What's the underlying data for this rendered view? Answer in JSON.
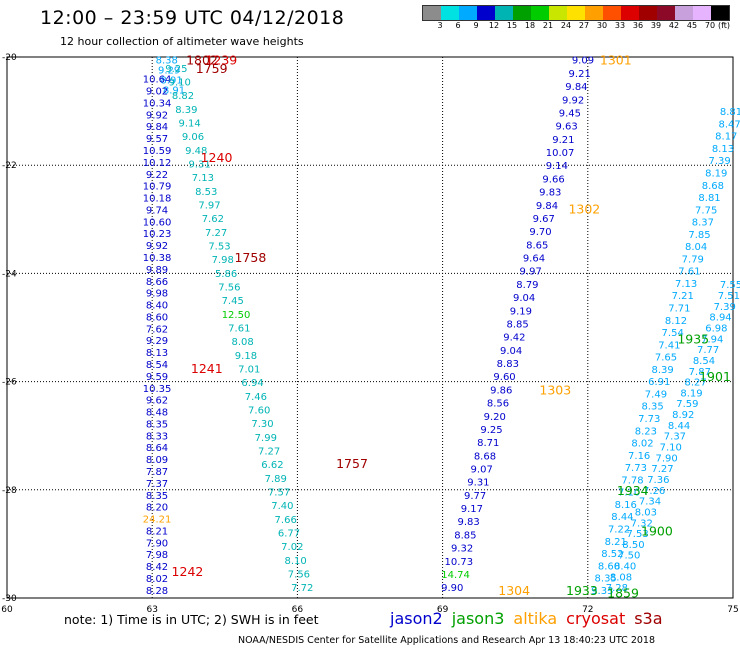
{
  "header": {
    "title": "12:00 – 23:59 UTC 04/12/2018",
    "subtitle": "12 hour collection of altimeter wave heights"
  },
  "colorbar": {
    "unit": "(ft)",
    "labels": [
      "3",
      "6",
      "9",
      "12",
      "15",
      "18",
      "21",
      "24",
      "27",
      "30",
      "33",
      "36",
      "39",
      "42",
      "45",
      "70"
    ],
    "colors": [
      "#8c8c8c",
      "#00e1e1",
      "#00aaff",
      "#0000cd",
      "#00b4b4",
      "#00a000",
      "#00cc00",
      "#c8e600",
      "#ffe100",
      "#ffa000",
      "#ff5000",
      "#dc0000",
      "#a00000",
      "#8c0a28",
      "#c8a0dc",
      "#e6b4ff",
      "#000000"
    ]
  },
  "map": {
    "lon_range": [
      60,
      75
    ],
    "lat_range": [
      -30,
      -20
    ],
    "x_ticks": [
      "60",
      "63",
      "66",
      "69",
      "72",
      "75"
    ],
    "y_ticks": [
      "-20",
      "-22",
      "-24",
      "-26",
      "-28",
      "-30"
    ]
  },
  "tracks": [
    {
      "id": "t1",
      "color": "#00aaff",
      "start": [
        63.3,
        -20.05
      ],
      "end": [
        63.45,
        -20.6
      ],
      "vals": [
        "8.38",
        "9.29",
        "8.91",
        "8.91"
      ]
    },
    {
      "id": "t2",
      "color": "#0000cd",
      "start": [
        63.1,
        -20.4
      ],
      "end": [
        63.1,
        -29.85
      ],
      "vals": [
        "10.64",
        "9.02",
        "10.34",
        "9.92",
        "9.84",
        "9.57",
        "10.59",
        "10.12",
        "9.22",
        "10.79",
        "10.18",
        "9.74",
        "10.60",
        "10.23",
        "9.92",
        "10.38",
        "9.89",
        "8.66",
        "9.98",
        "8.40",
        "8.60",
        "7.62",
        "9.29",
        "8.13",
        "8.54",
        "9.59",
        "10.35",
        "9.62",
        "8.48",
        "8.35",
        "8.33",
        "8.64",
        "8.09",
        "7.87",
        "7.37",
        "8.35",
        "8.20",
        "24.21",
        "8.21",
        "7.90",
        "7.98",
        "8.42",
        "8.02",
        "8.28"
      ]
    },
    {
      "id": "t3",
      "color": "#00b4b4",
      "start": [
        63.5,
        -20.2
      ],
      "end": [
        66.1,
        -29.8
      ],
      "vals": [
        "9.25",
        "9.10",
        "8.82",
        "8.39",
        "9.14",
        "9.06",
        "9.48",
        "9.31",
        "7.13",
        "8.53",
        "7.97",
        "7.62",
        "7.27",
        "7.53",
        "7.98",
        "5.86",
        "7.56",
        "7.45",
        "12.50",
        "7.61",
        "8.08",
        "9.18",
        "7.01",
        "6.94",
        "7.46",
        "7.60",
        "7.30",
        "7.99",
        "7.27",
        "6.62",
        "7.89",
        "7.57",
        "7.40",
        "7.66",
        "6.77",
        "7.02",
        "8.10",
        "7.56",
        "7.72"
      ]
    },
    {
      "id": "t4",
      "color": "#0000cd",
      "start": [
        71.9,
        -20.05
      ],
      "end": [
        69.2,
        -29.8
      ],
      "vals": [
        "9.09",
        "9.21",
        "9.84",
        "9.92",
        "9.45",
        "9.63",
        "9.21",
        "10.07",
        "9.14",
        "9.66",
        "9.83",
        "9.84",
        "9.67",
        "9.70",
        "8.65",
        "9.64",
        "9.97",
        "8.79",
        "9.04",
        "9.19",
        "8.85",
        "9.42",
        "9.04",
        "8.83",
        "9.60",
        "9.86",
        "8.56",
        "9.20",
        "9.25",
        "8.71",
        "8.68",
        "9.07",
        "9.31",
        "9.77",
        "9.17",
        "9.83",
        "8.85",
        "9.32",
        "10.73",
        "14.74",
        "9.90"
      ]
    },
    {
      "id": "t5",
      "color": "#00aaff",
      "start": [
        75.0,
        -21.0
      ],
      "end": [
        72.3,
        -29.85
      ],
      "vals": [
        "8.81",
        "8.47",
        "8.17",
        "8.13",
        "7.39",
        "8.19",
        "8.68",
        "8.81",
        "7.75",
        "8.37",
        "7.85",
        "8.04",
        "7.79",
        "7.61",
        "7.13",
        "7.21",
        "7.71",
        "8.12",
        "7.54",
        "7.41",
        "7.65",
        "8.39",
        "6.91",
        "7.49",
        "8.35",
        "7.73",
        "8.23",
        "8.02",
        "7.16",
        "7.73",
        "7.78",
        "7.10",
        "8.16",
        "8.44",
        "7.22",
        "8.21",
        "8.52",
        "8.60",
        "8.35",
        "9.33"
      ]
    },
    {
      "id": "t6",
      "color": "#00aaff",
      "start": [
        75.0,
        -24.2
      ],
      "end": [
        72.6,
        -29.8
      ],
      "vals": [
        "7.55",
        "7.51",
        "7.39",
        "8.94",
        "6.98",
        "7.94",
        "7.77",
        "8.54",
        "7.87",
        "8.27",
        "8.19",
        "7.59",
        "8.92",
        "8.44",
        "7.37",
        "7.10",
        "7.90",
        "7.27",
        "7.36",
        "7.26",
        "7.34",
        "8.03",
        "7.32",
        "7.53",
        "8.50",
        "7.50",
        "8.40",
        "8.08",
        "7.28"
      ]
    }
  ],
  "times": [
    {
      "label": "1802",
      "color": "#a00000",
      "pos": [
        63.7,
        -20.05
      ]
    },
    {
      "label": "1239",
      "color": "#dc0000",
      "pos": [
        64.1,
        -20.05
      ]
    },
    {
      "label": "1759",
      "color": "#a00000",
      "pos": [
        63.9,
        -20.2
      ]
    },
    {
      "label": "1240",
      "color": "#dc0000",
      "pos": [
        64.0,
        -21.85
      ]
    },
    {
      "label": "1758",
      "color": "#a00000",
      "pos": [
        64.7,
        -23.7
      ]
    },
    {
      "label": "1241",
      "color": "#dc0000",
      "pos": [
        63.8,
        -25.75
      ]
    },
    {
      "label": "1757",
      "color": "#a00000",
      "pos": [
        66.8,
        -27.5
      ]
    },
    {
      "label": "1242",
      "color": "#dc0000",
      "pos": [
        63.4,
        -29.5
      ]
    },
    {
      "label": "1301",
      "color": "#ffa000",
      "pos": [
        72.25,
        -20.05
      ]
    },
    {
      "label": "1302",
      "color": "#ffa000",
      "pos": [
        71.6,
        -22.8
      ]
    },
    {
      "label": "1303",
      "color": "#ffa000",
      "pos": [
        71.0,
        -26.15
      ]
    },
    {
      "label": "1304",
      "color": "#ffa000",
      "pos": [
        70.15,
        -29.85
      ]
    },
    {
      "label": "1935",
      "color": "#00a000",
      "pos": [
        73.85,
        -25.2
      ]
    },
    {
      "label": "1901",
      "color": "#00a000",
      "pos": [
        74.3,
        -25.9
      ]
    },
    {
      "label": "1934",
      "color": "#00a000",
      "pos": [
        72.6,
        -28.0
      ]
    },
    {
      "label": "1900",
      "color": "#00a000",
      "pos": [
        73.1,
        -28.75
      ]
    },
    {
      "label": "1933",
      "color": "#00a000",
      "pos": [
        71.55,
        -29.85
      ]
    },
    {
      "label": "1859",
      "color": "#00a000",
      "pos": [
        72.4,
        -29.9
      ]
    }
  ],
  "footer": {
    "note": "note:  1) Time is in UTC;  2) SWH is in feet",
    "satellites": [
      {
        "name": "jason2",
        "color": "#0000cd"
      },
      {
        "name": "jason3",
        "color": "#00a000"
      },
      {
        "name": "altika",
        "color": "#ffa000"
      },
      {
        "name": "cryosat",
        "color": "#dc0000"
      },
      {
        "name": "s3a",
        "color": "#a00000"
      }
    ],
    "credit": "NOAA/NESDIS Center for Satellite Applications and Research    Apr 13 18:40:23 UTC 2018"
  }
}
